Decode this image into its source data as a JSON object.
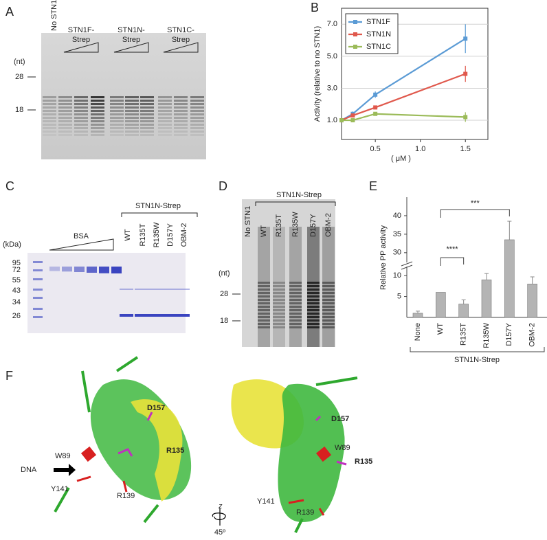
{
  "chart_data": [
    {
      "type": "line",
      "x": [
        0.125,
        0.25,
        0.5,
        1.5
      ],
      "xlabel": "( μM )",
      "ylabel": "Activity (relative to no STN1)",
      "xlim": [
        0.125,
        1.75
      ],
      "xticks": [
        0.5,
        {
          "value": 1.0,
          "label": "1.0"
        },
        1.5
      ],
      "ylim": [
        -0.2,
        8.0
      ],
      "yticks": [
        {
          "value": 1,
          "label": "1.0"
        },
        {
          "value": 3,
          "label": "3.0"
        },
        {
          "value": 5,
          "label": "5.0"
        },
        {
          "value": 7,
          "label": "7.0"
        }
      ],
      "grid": true,
      "legend": "upper left",
      "series": [
        {
          "name": "STN1F",
          "color": "#5b9bd5",
          "values": [
            1.0,
            1.4,
            2.6,
            6.1
          ],
          "errors": [
            0.05,
            0.15,
            0.2,
            0.9
          ]
        },
        {
          "name": "STN1N",
          "color": "#e0584c",
          "values": [
            1.0,
            1.3,
            1.8,
            3.9
          ],
          "errors": [
            0.05,
            0.1,
            0.1,
            0.5
          ]
        },
        {
          "name": "STN1C",
          "color": "#9bbb59",
          "values": [
            1.0,
            1.0,
            1.4,
            1.2
          ],
          "errors": [
            0.05,
            0.1,
            0.1,
            0.3
          ]
        }
      ]
    },
    {
      "type": "bar",
      "ylabel": "Relative PP activity",
      "categories": [
        "None",
        "WT",
        "R135T",
        "R135W",
        "D157Y",
        "OBM-2"
      ],
      "values": [
        1,
        6,
        3.2,
        9,
        33.5,
        8
      ],
      "errors": [
        0.5,
        0,
        1,
        1.5,
        5,
        1.7
      ],
      "color": "#b4b4b4",
      "ylim": [
        0,
        45
      ],
      "axis_break": [
        12,
        27
      ],
      "yticks": [
        5,
        10,
        30,
        35,
        40
      ],
      "group_label": "STN1N-Strep",
      "annotations": [
        "***",
        "****"
      ]
    }
  ],
  "figure": {
    "panel_letters": [
      "A",
      "B",
      "C",
      "D",
      "E",
      "F"
    ],
    "gel_a": {
      "lanes": [
        [
          "No STN1"
        ],
        [
          "STN1F-",
          "Strep"
        ],
        [
          "STN1N-",
          "Strep"
        ],
        [
          "STN1C-",
          "Strep"
        ]
      ],
      "unit": "(nt)",
      "markers": [
        "28",
        "18"
      ]
    },
    "gel_c": {
      "unit": "(kDa)",
      "markers": [
        "95",
        "72",
        "55",
        "43",
        "34",
        "26"
      ],
      "bsa": "BSA",
      "group": "STN1N-Strep",
      "lanes": [
        "WT",
        "R135T",
        "R135W",
        "D157Y",
        "OBM-2"
      ]
    },
    "gel_d": {
      "lanes": [
        "No STN1",
        "WT",
        "R135T",
        "R135W",
        "D157Y",
        "OBM-2"
      ],
      "group": "STN1N-Strep",
      "unit": "(nt)",
      "markers": [
        "28",
        "18"
      ]
    },
    "structure": {
      "left": [
        "D157",
        "R135",
        "W89",
        "Y141",
        "R139",
        "DNA"
      ],
      "right": [
        "D157",
        "W89",
        "R135",
        "Y141",
        "R139"
      ],
      "axis": "z",
      "angle": "45º"
    }
  }
}
